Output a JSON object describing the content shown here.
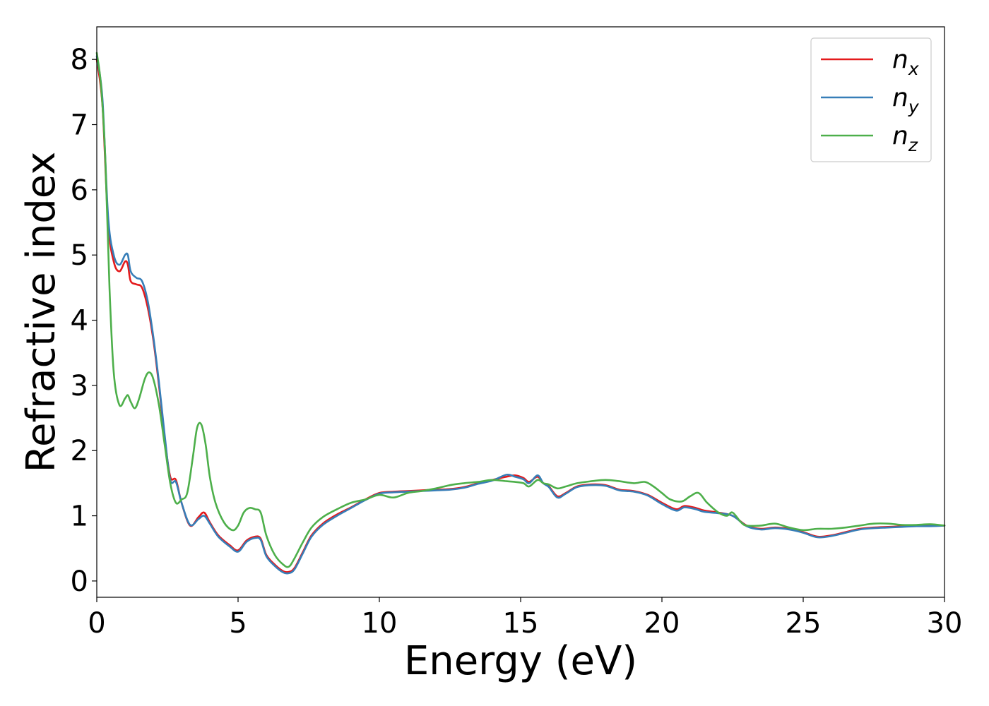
{
  "chart_data": {
    "type": "line",
    "xlabel": "Energy (eV)",
    "ylabel": "Refractive index",
    "xlim": [
      0,
      30
    ],
    "ylim": [
      -0.25,
      8.5
    ],
    "xticks": [
      "0",
      "5",
      "10",
      "15",
      "20",
      "25",
      "30"
    ],
    "yticks": [
      "0",
      "1",
      "2",
      "3",
      "4",
      "5",
      "6",
      "7",
      "8"
    ],
    "grid": false,
    "legend": {
      "placement": "top-right"
    },
    "series": [
      {
        "name": "n",
        "subscript": "x",
        "color": "#e41a1c",
        "x": [
          0,
          0.2,
          0.4,
          0.6,
          0.8,
          1.0,
          1.1,
          1.2,
          1.4,
          1.6,
          1.8,
          2.0,
          2.2,
          2.4,
          2.6,
          2.8,
          3.0,
          3.3,
          3.6,
          3.8,
          4.0,
          4.3,
          4.7,
          5.0,
          5.3,
          5.6,
          5.8,
          6.0,
          6.3,
          6.6,
          6.8,
          7.0,
          7.3,
          7.6,
          8.0,
          8.5,
          9.0,
          9.5,
          10.0,
          10.5,
          11.0,
          11.5,
          12.0,
          12.5,
          13.0,
          13.5,
          14.0,
          14.5,
          14.8,
          15.1,
          15.3,
          15.6,
          15.8,
          16.0,
          16.3,
          16.6,
          17.0,
          17.5,
          18.0,
          18.5,
          19.0,
          19.5,
          20.0,
          20.5,
          20.8,
          21.2,
          21.5,
          22.0,
          22.5,
          23.0,
          23.5,
          24.0,
          24.5,
          25.0,
          25.5,
          26.0,
          26.5,
          27.0,
          27.5,
          28.0,
          28.5,
          29.0,
          29.5,
          30.0
        ],
        "y": [
          8.0,
          7.3,
          5.5,
          4.9,
          4.75,
          4.9,
          4.85,
          4.6,
          4.55,
          4.5,
          4.2,
          3.7,
          3.0,
          2.2,
          1.6,
          1.55,
          1.2,
          0.85,
          0.98,
          1.05,
          0.9,
          0.7,
          0.55,
          0.47,
          0.62,
          0.68,
          0.65,
          0.4,
          0.25,
          0.15,
          0.14,
          0.2,
          0.45,
          0.7,
          0.88,
          1.02,
          1.13,
          1.25,
          1.35,
          1.37,
          1.38,
          1.39,
          1.4,
          1.41,
          1.44,
          1.5,
          1.55,
          1.6,
          1.62,
          1.58,
          1.52,
          1.6,
          1.5,
          1.45,
          1.3,
          1.35,
          1.45,
          1.48,
          1.47,
          1.4,
          1.38,
          1.32,
          1.2,
          1.1,
          1.15,
          1.12,
          1.08,
          1.05,
          1.0,
          0.85,
          0.8,
          0.82,
          0.8,
          0.75,
          0.68,
          0.7,
          0.75,
          0.8,
          0.82,
          0.83,
          0.84,
          0.85,
          0.85,
          0.85
        ]
      },
      {
        "name": "n",
        "subscript": "y",
        "color": "#377eb8",
        "x": [
          0,
          0.2,
          0.4,
          0.6,
          0.8,
          1.0,
          1.1,
          1.2,
          1.4,
          1.6,
          1.8,
          2.0,
          2.2,
          2.4,
          2.6,
          2.8,
          3.0,
          3.3,
          3.6,
          3.8,
          4.0,
          4.3,
          4.7,
          5.0,
          5.3,
          5.6,
          5.8,
          6.0,
          6.3,
          6.6,
          6.8,
          7.0,
          7.3,
          7.6,
          8.0,
          8.5,
          9.0,
          9.5,
          10.0,
          10.5,
          11.0,
          11.5,
          12.0,
          12.5,
          13.0,
          13.5,
          14.0,
          14.5,
          14.8,
          15.1,
          15.3,
          15.6,
          15.8,
          16.0,
          16.3,
          16.6,
          17.0,
          17.5,
          18.0,
          18.5,
          19.0,
          19.5,
          20.0,
          20.5,
          20.8,
          21.2,
          21.5,
          22.0,
          22.5,
          23.0,
          23.5,
          24.0,
          24.5,
          25.0,
          25.5,
          26.0,
          26.5,
          27.0,
          27.5,
          28.0,
          28.5,
          29.0,
          29.5,
          30.0
        ],
        "y": [
          8.05,
          7.4,
          5.6,
          5.0,
          4.85,
          5.0,
          5.0,
          4.75,
          4.65,
          4.6,
          4.3,
          3.75,
          3.05,
          2.25,
          1.55,
          1.52,
          1.2,
          0.86,
          0.95,
          1.0,
          0.88,
          0.68,
          0.53,
          0.45,
          0.6,
          0.66,
          0.63,
          0.38,
          0.23,
          0.13,
          0.12,
          0.18,
          0.43,
          0.68,
          0.86,
          1.0,
          1.12,
          1.24,
          1.34,
          1.36,
          1.37,
          1.38,
          1.39,
          1.4,
          1.43,
          1.49,
          1.54,
          1.63,
          1.6,
          1.56,
          1.5,
          1.62,
          1.5,
          1.44,
          1.28,
          1.34,
          1.44,
          1.47,
          1.46,
          1.39,
          1.37,
          1.31,
          1.18,
          1.08,
          1.13,
          1.1,
          1.06,
          1.04,
          1.0,
          0.84,
          0.79,
          0.81,
          0.79,
          0.74,
          0.67,
          0.69,
          0.74,
          0.79,
          0.81,
          0.82,
          0.83,
          0.84,
          0.84,
          0.85
        ]
      },
      {
        "name": "n",
        "subscript": "z",
        "color": "#4daf4a",
        "x": [
          0,
          0.15,
          0.3,
          0.45,
          0.6,
          0.8,
          1.0,
          1.1,
          1.2,
          1.35,
          1.5,
          1.7,
          1.85,
          2.0,
          2.2,
          2.4,
          2.6,
          2.8,
          3.0,
          3.2,
          3.4,
          3.55,
          3.7,
          3.85,
          4.0,
          4.2,
          4.5,
          4.8,
          5.0,
          5.2,
          5.4,
          5.6,
          5.8,
          6.0,
          6.3,
          6.6,
          6.8,
          7.0,
          7.3,
          7.6,
          8.0,
          8.5,
          9.0,
          9.5,
          10.0,
          10.5,
          11.0,
          11.5,
          12.0,
          12.5,
          13.0,
          13.5,
          14.0,
          14.5,
          14.8,
          15.1,
          15.3,
          15.6,
          15.8,
          16.0,
          16.3,
          16.6,
          17.0,
          17.5,
          18.0,
          18.5,
          19.0,
          19.4,
          19.7,
          20.0,
          20.3,
          20.7,
          21.0,
          21.3,
          21.6,
          22.0,
          22.3,
          22.5,
          22.8,
          23.0,
          23.5,
          24.0,
          24.5,
          25.0,
          25.5,
          26.0,
          26.5,
          27.0,
          27.5,
          28.0,
          28.5,
          29.0,
          29.5,
          30.0
        ],
        "y": [
          8.1,
          7.6,
          6.5,
          4.5,
          3.2,
          2.7,
          2.8,
          2.85,
          2.75,
          2.65,
          2.8,
          3.1,
          3.2,
          3.1,
          2.7,
          2.1,
          1.5,
          1.2,
          1.25,
          1.35,
          1.9,
          2.35,
          2.4,
          2.1,
          1.6,
          1.2,
          0.9,
          0.78,
          0.85,
          1.05,
          1.12,
          1.1,
          1.05,
          0.7,
          0.4,
          0.25,
          0.22,
          0.35,
          0.6,
          0.82,
          0.98,
          1.1,
          1.2,
          1.25,
          1.32,
          1.28,
          1.35,
          1.38,
          1.42,
          1.47,
          1.5,
          1.52,
          1.55,
          1.53,
          1.52,
          1.5,
          1.45,
          1.55,
          1.5,
          1.48,
          1.42,
          1.45,
          1.5,
          1.53,
          1.55,
          1.53,
          1.5,
          1.52,
          1.45,
          1.35,
          1.25,
          1.22,
          1.3,
          1.35,
          1.2,
          1.05,
          1.0,
          1.05,
          0.9,
          0.85,
          0.85,
          0.88,
          0.82,
          0.78,
          0.8,
          0.8,
          0.82,
          0.85,
          0.88,
          0.88,
          0.86,
          0.86,
          0.87,
          0.85
        ]
      }
    ]
  }
}
